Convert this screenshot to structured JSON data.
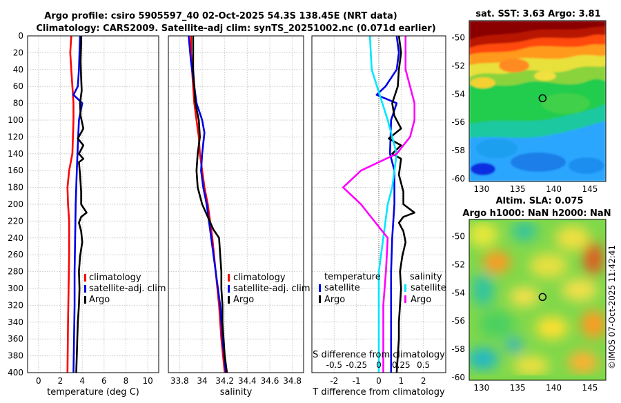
{
  "header": {
    "line1": "Argo profile: csiro 5905597_40 02-Oct-2025 54.3S 138.45E (NRT data)",
    "line2": "Climatology: CARS2009. Satellite-adj clim: synTS_20251002.nc (0.071d earlier)"
  },
  "colors": {
    "climatology": "#ff0000",
    "satellite": "#0000e6",
    "argo": "#000000",
    "sat_salt": "#00e6ff",
    "argo_salt": "#ff00ff"
  },
  "chart_data": [
    {
      "id": "temperature",
      "type": "line",
      "xlabel": "temperature (deg C)",
      "ylabel": "",
      "xlim": [
        -1,
        11
      ],
      "ylim": [
        400,
        0
      ],
      "xticks": [
        0,
        2,
        4,
        6,
        8,
        10
      ],
      "xtick_labels": [
        "0",
        "2",
        "4",
        "6",
        "8",
        "10"
      ],
      "yticks": [
        0,
        20,
        40,
        60,
        80,
        100,
        120,
        140,
        160,
        180,
        200,
        220,
        240,
        260,
        280,
        300,
        320,
        340,
        360,
        380,
        400
      ],
      "legend": [
        "climatology",
        "satellite-adj. clim",
        "Argo"
      ],
      "series": [
        {
          "name": "climatology",
          "color": "#ff0000",
          "points": [
            [
              3.0,
              0
            ],
            [
              2.9,
              20
            ],
            [
              3.0,
              40
            ],
            [
              3.1,
              60
            ],
            [
              3.2,
              80
            ],
            [
              3.2,
              100
            ],
            [
              3.15,
              120
            ],
            [
              3.1,
              140
            ],
            [
              2.8,
              160
            ],
            [
              2.65,
              180
            ],
            [
              2.7,
              200
            ],
            [
              2.8,
              220
            ],
            [
              2.8,
              260
            ],
            [
              2.75,
              300
            ],
            [
              2.7,
              340
            ],
            [
              2.65,
              400
            ]
          ]
        },
        {
          "name": "satellite-adj. clim",
          "color": "#0000e6",
          "points": [
            [
              3.8,
              0
            ],
            [
              3.75,
              20
            ],
            [
              3.7,
              40
            ],
            [
              3.6,
              60
            ],
            [
              3.2,
              70
            ],
            [
              4.0,
              80
            ],
            [
              3.7,
              100
            ],
            [
              3.6,
              130
            ],
            [
              3.5,
              160
            ],
            [
              3.4,
              200
            ],
            [
              3.35,
              240
            ],
            [
              3.3,
              280
            ],
            [
              3.3,
              320
            ],
            [
              3.25,
              360
            ],
            [
              3.2,
              400
            ]
          ]
        },
        {
          "name": "Argo",
          "color": "#000000",
          "points": [
            [
              3.9,
              0
            ],
            [
              3.9,
              10
            ],
            [
              3.85,
              30
            ],
            [
              3.9,
              50
            ],
            [
              3.95,
              65
            ],
            [
              3.8,
              80
            ],
            [
              3.85,
              95
            ],
            [
              4.1,
              110
            ],
            [
              3.6,
              122
            ],
            [
              4.1,
              130
            ],
            [
              3.7,
              140
            ],
            [
              4.1,
              146
            ],
            [
              3.7,
              150
            ],
            [
              3.8,
              165
            ],
            [
              3.9,
              185
            ],
            [
              3.9,
              200
            ],
            [
              4.4,
              210
            ],
            [
              3.9,
              215
            ],
            [
              3.7,
              222
            ],
            [
              3.9,
              232
            ],
            [
              4.0,
              245
            ],
            [
              3.8,
              262
            ],
            [
              3.7,
              280
            ],
            [
              3.75,
              300
            ],
            [
              3.7,
              320
            ],
            [
              3.6,
              340
            ],
            [
              3.55,
              360
            ],
            [
              3.5,
              380
            ],
            [
              3.45,
              400
            ]
          ]
        }
      ]
    },
    {
      "id": "salinity",
      "type": "line",
      "xlabel": "salinity",
      "ylabel": "",
      "xlim": [
        33.7,
        34.9
      ],
      "ylim": [
        400,
        0
      ],
      "xticks": [
        33.8,
        34,
        34.2,
        34.4,
        34.6,
        34.8
      ],
      "xtick_labels": [
        "33.8",
        "34",
        "34.2",
        "34.4",
        "34.6",
        "34.8"
      ],
      "legend": [
        "climatology",
        "satellite-adj. clim",
        "Argo"
      ],
      "series": [
        {
          "name": "climatology",
          "color": "#ff0000",
          "points": [
            [
              33.9,
              0
            ],
            [
              33.9,
              20
            ],
            [
              33.91,
              40
            ],
            [
              33.92,
              60
            ],
            [
              33.93,
              80
            ],
            [
              33.95,
              100
            ],
            [
              33.97,
              120
            ],
            [
              33.98,
              140
            ],
            [
              34.0,
              160
            ],
            [
              34.02,
              180
            ],
            [
              34.05,
              200
            ],
            [
              34.09,
              240
            ],
            [
              34.12,
              280
            ],
            [
              34.15,
              320
            ],
            [
              34.17,
              360
            ],
            [
              34.2,
              400
            ]
          ]
        },
        {
          "name": "satellite-adj. clim",
          "color": "#0000e6",
          "points": [
            [
              33.88,
              0
            ],
            [
              33.9,
              30
            ],
            [
              33.93,
              60
            ],
            [
              33.95,
              80
            ],
            [
              34.0,
              100
            ],
            [
              34.02,
              115
            ],
            [
              34.0,
              140
            ],
            [
              33.99,
              160
            ],
            [
              34.01,
              180
            ],
            [
              34.04,
              200
            ],
            [
              34.08,
              240
            ],
            [
              34.12,
              280
            ],
            [
              34.16,
              320
            ],
            [
              34.18,
              360
            ],
            [
              34.21,
              400
            ]
          ]
        },
        {
          "name": "Argo",
          "color": "#000000",
          "points": [
            [
              33.92,
              0
            ],
            [
              33.92,
              20
            ],
            [
              33.92,
              40
            ],
            [
              33.93,
              60
            ],
            [
              33.94,
              80
            ],
            [
              33.97,
              100
            ],
            [
              33.98,
              120
            ],
            [
              33.96,
              140
            ],
            [
              33.95,
              160
            ],
            [
              33.96,
              180
            ],
            [
              34.0,
              200
            ],
            [
              34.1,
              230
            ],
            [
              34.15,
              240
            ],
            [
              34.16,
              260
            ],
            [
              34.17,
              280
            ],
            [
              34.17,
              300
            ],
            [
              34.18,
              320
            ],
            [
              34.18,
              340
            ],
            [
              34.19,
              360
            ],
            [
              34.2,
              380
            ],
            [
              34.22,
              400
            ]
          ]
        }
      ]
    },
    {
      "id": "difference",
      "type": "line",
      "xlabel": "T difference from climatology",
      "xlabel_top": "S difference from climatology",
      "xlim": [
        -3,
        3
      ],
      "ylim": [
        400,
        0
      ],
      "xticks": [
        -2,
        -1,
        0,
        1,
        2
      ],
      "xtick_labels": [
        "-2",
        "-1",
        "0",
        "1",
        "2"
      ],
      "xticks_top": [
        -0.5,
        -0.25,
        0,
        0.25,
        0.5
      ],
      "xtick_labels_top": [
        "-0.5",
        "-0.25",
        "0",
        "0.25",
        "0.5"
      ],
      "legend_temperature": {
        "title": "temperature",
        "items": [
          "satellite",
          "Argo"
        ]
      },
      "legend_salinity": {
        "title": "salinity",
        "items": [
          "satellite",
          "Argo"
        ]
      },
      "series": [
        {
          "name": "satellite (T)",
          "color": "#0000e6",
          "points": [
            [
              0.8,
              0
            ],
            [
              0.9,
              20
            ],
            [
              0.8,
              40
            ],
            [
              0.3,
              60
            ],
            [
              -0.1,
              70
            ],
            [
              0.8,
              80
            ],
            [
              0.55,
              100
            ],
            [
              0.5,
              140
            ],
            [
              0.7,
              160
            ],
            [
              0.7,
              200
            ],
            [
              0.6,
              240
            ],
            [
              0.55,
              280
            ],
            [
              0.55,
              320
            ],
            [
              0.55,
              360
            ],
            [
              0.55,
              400
            ]
          ]
        },
        {
          "name": "Argo (T)",
          "color": "#000000",
          "points": [
            [
              0.9,
              0
            ],
            [
              1.0,
              20
            ],
            [
              0.9,
              40
            ],
            [
              0.85,
              60
            ],
            [
              0.6,
              80
            ],
            [
              0.7,
              95
            ],
            [
              1.0,
              110
            ],
            [
              0.45,
              122
            ],
            [
              1.0,
              130
            ],
            [
              0.6,
              140
            ],
            [
              1.0,
              146
            ],
            [
              0.9,
              165
            ],
            [
              1.1,
              185
            ],
            [
              1.1,
              200
            ],
            [
              1.6,
              210
            ],
            [
              1.1,
              215
            ],
            [
              0.9,
              222
            ],
            [
              1.1,
              232
            ],
            [
              1.2,
              245
            ],
            [
              1.05,
              262
            ],
            [
              0.95,
              280
            ],
            [
              1.0,
              300
            ],
            [
              0.95,
              320
            ],
            [
              0.9,
              340
            ],
            [
              0.9,
              360
            ],
            [
              0.85,
              380
            ],
            [
              0.8,
              400
            ]
          ]
        },
        {
          "name": "satellite (S)",
          "color": "#00e6ff",
          "points": [
            [
              -0.1,
              0
            ],
            [
              -0.08,
              40
            ],
            [
              0.1,
              100
            ],
            [
              0.2,
              140
            ],
            [
              0.15,
              180
            ],
            [
              0.1,
              200
            ],
            [
              0.05,
              240
            ],
            [
              0.0,
              280
            ],
            [
              0.0,
              320
            ],
            [
              0.0,
              400
            ]
          ]
        },
        {
          "name": "Argo (S)",
          "color": "#ff00ff",
          "points": [
            [
              0.3,
              0
            ],
            [
              0.3,
              40
            ],
            [
              0.35,
              60
            ],
            [
              0.4,
              80
            ],
            [
              0.4,
              100
            ],
            [
              0.35,
              120
            ],
            [
              0.2,
              140
            ],
            [
              -0.2,
              160
            ],
            [
              -0.4,
              180
            ],
            [
              -0.2,
              200
            ],
            [
              0.1,
              240
            ],
            [
              0.08,
              280
            ],
            [
              0.05,
              320
            ],
            [
              0.05,
              360
            ],
            [
              0.05,
              400
            ]
          ]
        }
      ]
    }
  ],
  "maps": {
    "sst": {
      "title": "sat. SST: 3.63 Argo: 3.81",
      "yticks": [
        "-50",
        "-52",
        "-54",
        "-56",
        "-58",
        "-60"
      ],
      "xticks": [
        "130",
        "135",
        "140",
        "145"
      ],
      "marker": {
        "lon": 138.45,
        "lat": -54.3
      }
    },
    "sla": {
      "title1": "Altim. SLA: 0.075",
      "title2": "Argo h1000: NaN h2000: NaN",
      "yticks": [
        "-50",
        "-52",
        "-54",
        "-56",
        "-58",
        "-60"
      ],
      "xticks": [
        "130",
        "135",
        "140",
        "145"
      ],
      "marker": {
        "lon": 138.45,
        "lat": -54.3
      }
    }
  },
  "footer": {
    "stamp": "©IMOS 07-Oct-2025 11:42:41"
  }
}
